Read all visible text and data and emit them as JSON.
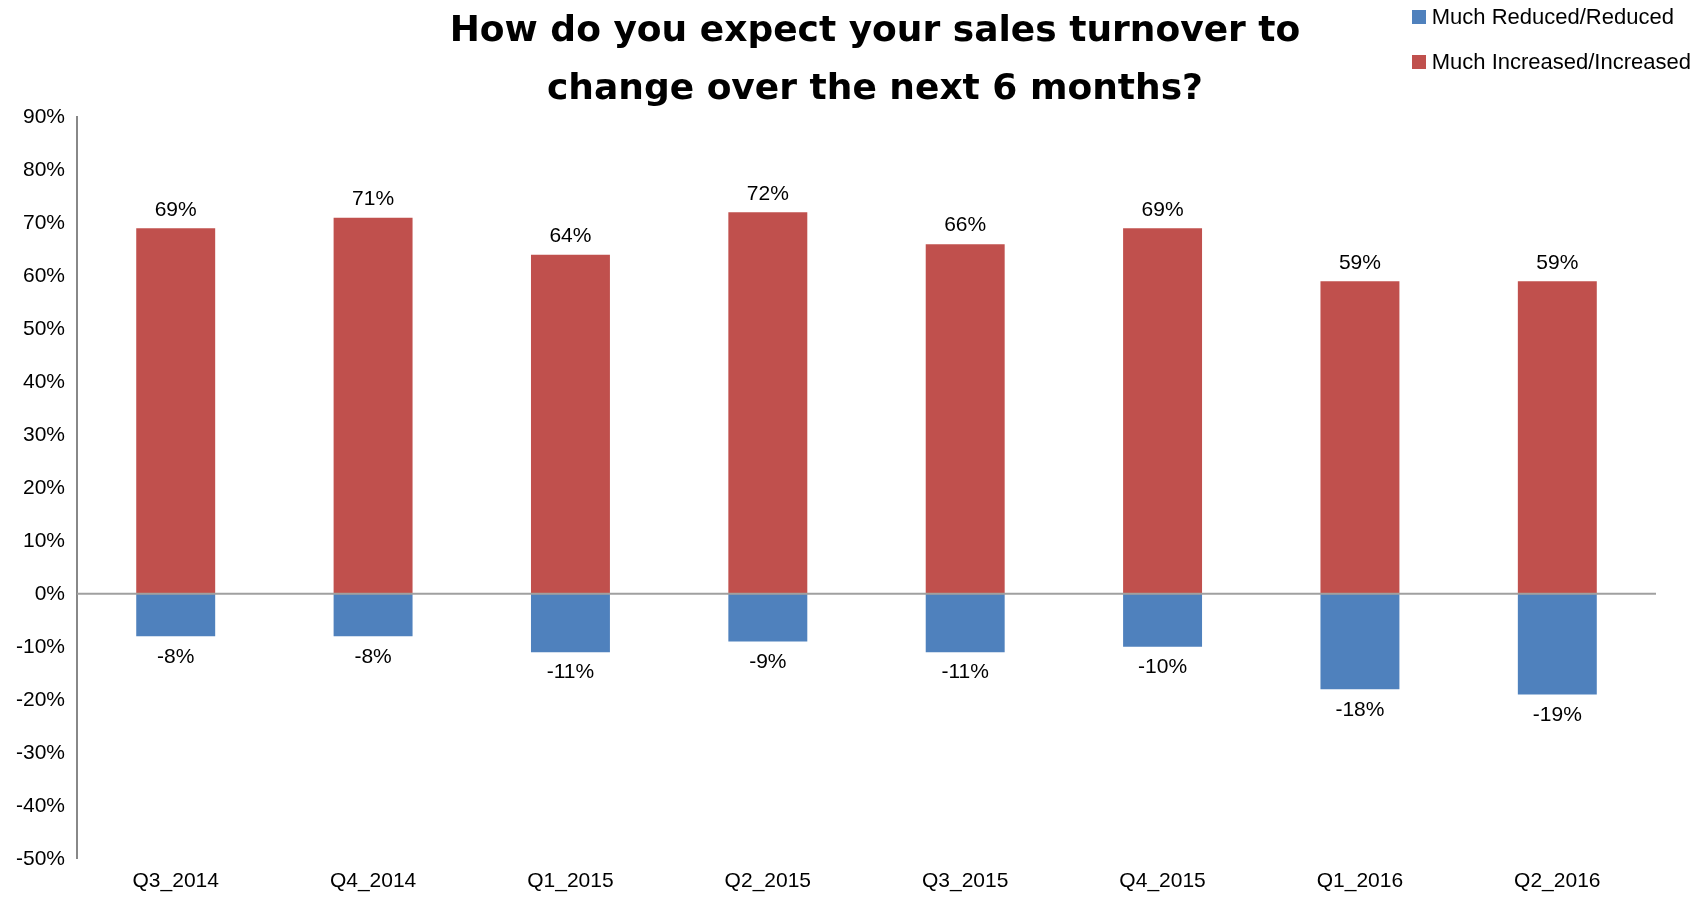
{
  "chart_data": {
    "type": "bar",
    "title": "How do you expect your sales turnover to change over the next 6 months?",
    "categories": [
      "Q3_2014",
      "Q4_2014",
      "Q1_2015",
      "Q2_2015",
      "Q3_2015",
      "Q4_2015",
      "Q1_2016",
      "Q2_2016"
    ],
    "stacked": true,
    "legend": "top right",
    "grid": false,
    "ylim": [
      -50,
      90
    ],
    "yticks": [
      {
        "value": -50,
        "label": "-50%"
      },
      {
        "value": -40,
        "label": "-40%"
      },
      {
        "value": -30,
        "label": "-30%"
      },
      {
        "value": -20,
        "label": "-20%"
      },
      {
        "value": -10,
        "label": "-10%"
      },
      {
        "value": 0,
        "label": "0%"
      },
      {
        "value": 10,
        "label": "10%"
      },
      {
        "value": 20,
        "label": "20%"
      },
      {
        "value": 30,
        "label": "30%"
      },
      {
        "value": 40,
        "label": "40%"
      },
      {
        "value": 50,
        "label": "50%"
      },
      {
        "value": 60,
        "label": "60%"
      },
      {
        "value": 70,
        "label": "70%"
      },
      {
        "value": 80,
        "label": "80%"
      },
      {
        "value": 90,
        "label": "90%"
      }
    ],
    "ref_lines": [
      {
        "axis": "y",
        "value": 0,
        "color": "#a0a0a0"
      }
    ],
    "series": [
      {
        "name": "Much Reduced/Reduced",
        "color": "#4f81bd",
        "values": [
          -8,
          -8,
          -11,
          -9,
          -11,
          -10,
          -18,
          -19
        ],
        "value_labels": [
          "-8%",
          "-8%",
          "-11%",
          "-9%",
          "-11%",
          "-10%",
          "-18%",
          "-19%"
        ]
      },
      {
        "name": "Much Increased/Increased",
        "color": "#c0504d",
        "values": [
          69,
          71,
          64,
          72,
          66,
          69,
          59,
          59
        ],
        "value_labels": [
          "69%",
          "71%",
          "64%",
          "72%",
          "66%",
          "69%",
          "59%",
          "59%"
        ]
      }
    ]
  }
}
